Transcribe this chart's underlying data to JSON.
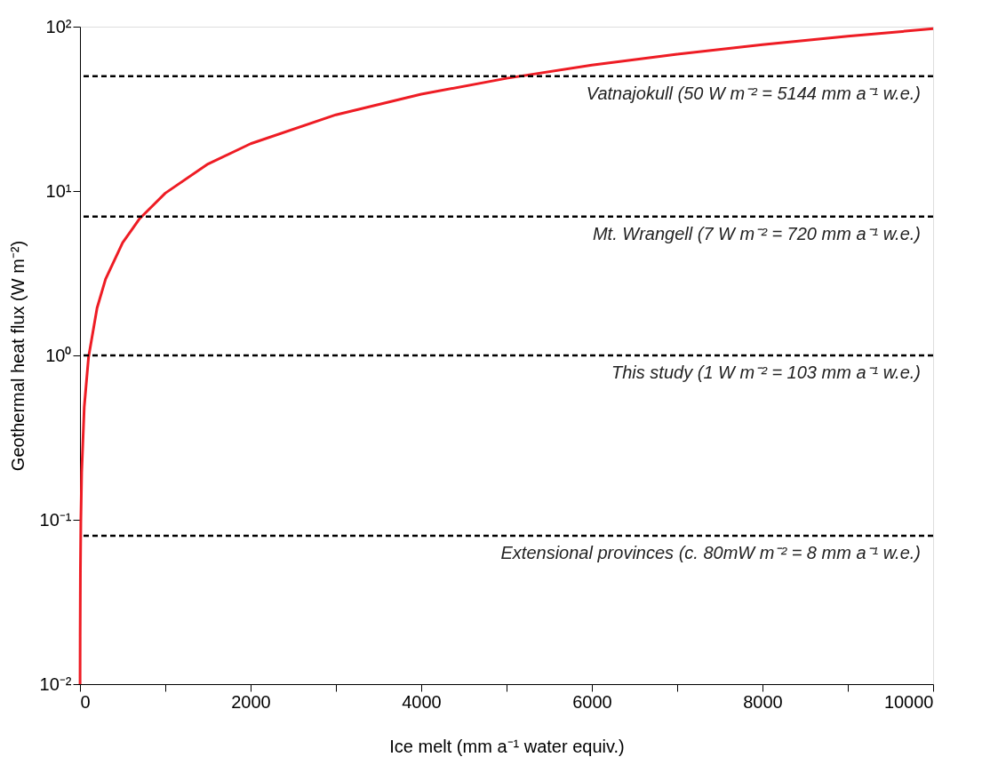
{
  "chart_data": {
    "type": "line",
    "xlabel": "Ice melt (mm a⁻¹ water equiv.)",
    "ylabel": "Geothermal heat flux (W m⁻²)",
    "log": "y",
    "grid": false,
    "line_style": "solid",
    "marker": "none",
    "xlim": [
      0,
      10000
    ],
    "ylim": [
      0.01,
      100
    ],
    "xticks": [
      0,
      {
        "value": 1000,
        "label": null
      },
      2000,
      {
        "value": 3000,
        "label": null
      },
      4000,
      {
        "value": 5000,
        "label": null
      },
      6000,
      {
        "value": 7000,
        "label": null
      },
      8000,
      {
        "value": 9000,
        "label": null
      },
      10000
    ],
    "yticks": [
      {
        "value": 0.01,
        "label": "10⁻²"
      },
      {
        "value": 0.1,
        "label": "10⁻¹"
      },
      {
        "value": 1,
        "label": "10⁰"
      },
      {
        "value": 10,
        "label": "10¹"
      },
      {
        "value": 100,
        "label": "10²"
      }
    ],
    "series": [
      {
        "color": "#ee1c24",
        "x": [
          1.03,
          2,
          5,
          10,
          20,
          50,
          100,
          200,
          300,
          500,
          700,
          1000,
          1500,
          2000,
          3000,
          4000,
          5000,
          6000,
          7000,
          8000,
          9000,
          10000
        ],
        "values": [
          0.01,
          0.0194,
          0.0485,
          0.097,
          0.194,
          0.485,
          0.971,
          1.94,
          2.91,
          4.85,
          6.8,
          9.71,
          14.6,
          19.4,
          29.1,
          38.8,
          48.5,
          58.3,
          68.0,
          77.7,
          87.4,
          97.1
        ]
      }
    ],
    "ref_lines": [
      {
        "axis": "y",
        "value": 50,
        "label": "Vatnajokull (50 W m⁻² = 5144 mm a⁻¹ w.e.)",
        "color": "#000000",
        "line_style": "dashed"
      },
      {
        "axis": "y",
        "value": 7,
        "label": "Mt. Wrangell (7 W m⁻² = 720 mm a⁻¹ w.e.)",
        "color": "#000000",
        "line_style": "dashed"
      },
      {
        "axis": "y",
        "value": 1,
        "label": "This study (1 W m⁻² = 103 mm a⁻¹ w.e.)",
        "color": "#000000",
        "line_style": "dashed"
      },
      {
        "axis": "y",
        "value": 0.08,
        "label": "Extensional provinces (c. 80mW m⁻² =  8 mm a⁻¹ w.e.)",
        "color": "#000000",
        "line_style": "dashed"
      }
    ]
  }
}
